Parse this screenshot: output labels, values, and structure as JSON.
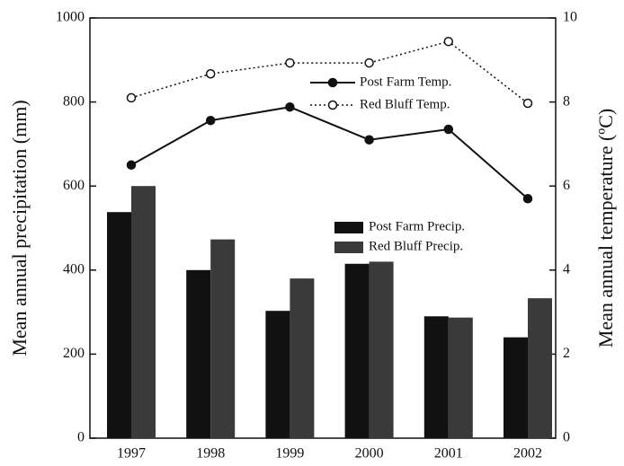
{
  "chart_data": {
    "type": "bar",
    "categories": [
      "1997",
      "1998",
      "1999",
      "2000",
      "2001",
      "2002"
    ],
    "ylabel": "Mean annual precipitation (mm)",
    "y2label": "Mean annual temperature (ºC)",
    "ylim": [
      0,
      1000
    ],
    "yticks": [
      0,
      200,
      400,
      600,
      800,
      1000
    ],
    "y2lim": [
      0,
      10
    ],
    "y2ticks": [
      0,
      2,
      4,
      6,
      8,
      10
    ],
    "series": [
      {
        "name": "Post Farm Precip.",
        "type": "bar",
        "color": "#111111",
        "values": [
          538,
          400,
          303,
          415,
          290,
          240
        ]
      },
      {
        "name": "Red Bluff Precip.",
        "type": "bar",
        "color": "#3a3a3a",
        "values": [
          600,
          473,
          380,
          420,
          287,
          333
        ]
      },
      {
        "name": "Post Farm Temp.",
        "type": "line",
        "axis": "y2",
        "color": "#111111",
        "style": "solid",
        "marker": "filled",
        "values": [
          6.5,
          7.56,
          7.88,
          7.1,
          7.35,
          5.7
        ]
      },
      {
        "name": "Red Bluff Temp.",
        "type": "line",
        "axis": "y2",
        "color": "#111111",
        "style": "dotted",
        "marker": "open",
        "values": [
          8.1,
          8.67,
          8.93,
          8.93,
          9.44,
          7.97
        ]
      }
    ]
  }
}
